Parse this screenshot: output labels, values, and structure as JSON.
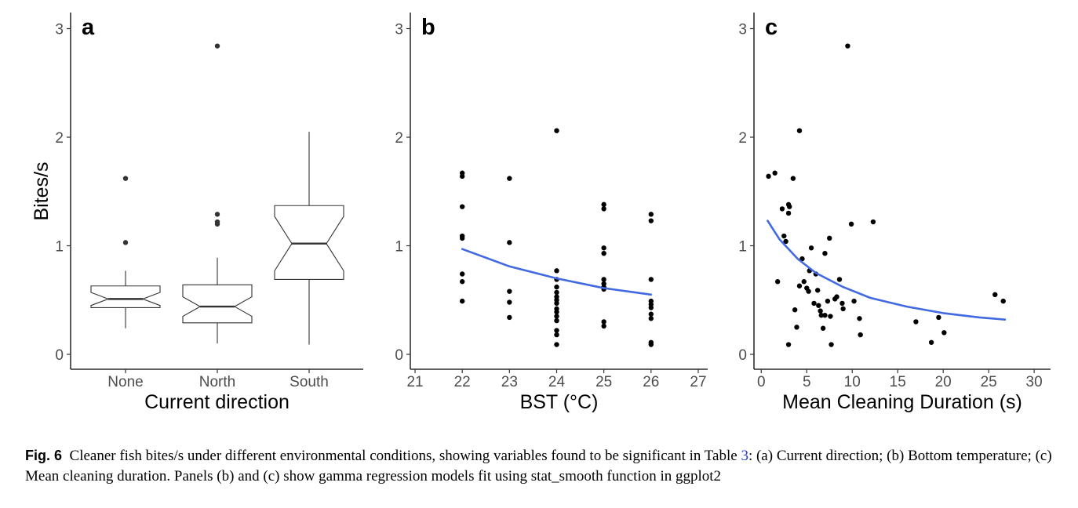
{
  "chart_data": [
    {
      "type": "box",
      "panel_label": "a",
      "xlabel": "Current direction",
      "ylabel": "Bites/s",
      "ylim": [
        0,
        3
      ],
      "yticks": [
        0,
        1,
        2,
        3
      ],
      "notched": true,
      "categories": [
        "None",
        "North",
        "South"
      ],
      "boxes": [
        {
          "category": "None",
          "whisker_low": 0.24,
          "q1": 0.43,
          "median": 0.51,
          "q3": 0.63,
          "whisker_high": 0.77,
          "notch_low": 0.45,
          "notch_high": 0.57,
          "outliers": [
            1.03,
            1.62
          ]
        },
        {
          "category": "North",
          "whisker_low": 0.1,
          "q1": 0.29,
          "median": 0.44,
          "q3": 0.64,
          "whisker_high": 0.89,
          "notch_low": 0.35,
          "notch_high": 0.53,
          "outliers": [
            1.2,
            1.22,
            1.29,
            2.84
          ]
        },
        {
          "category": "South",
          "whisker_low": 0.09,
          "q1": 0.69,
          "median": 1.02,
          "q3": 1.37,
          "whisker_high": 2.05,
          "notch_low": 0.77,
          "notch_high": 1.27,
          "outliers": []
        }
      ]
    },
    {
      "type": "scatter",
      "panel_label": "b",
      "xlabel": "BST (°C)",
      "ylabel": "",
      "xlim": [
        20.9,
        27.2
      ],
      "ylim": [
        0,
        3
      ],
      "xticks": [
        21,
        22,
        23,
        24,
        25,
        26,
        27
      ],
      "yticks": [
        0,
        1,
        2,
        3
      ],
      "points": [
        [
          22,
          1.67
        ],
        [
          22,
          1.64
        ],
        [
          22,
          1.36
        ],
        [
          22,
          1.09
        ],
        [
          22,
          1.07
        ],
        [
          22,
          0.74
        ],
        [
          22,
          0.67
        ],
        [
          22,
          0.49
        ],
        [
          23,
          1.62
        ],
        [
          23,
          1.03
        ],
        [
          23,
          0.58
        ],
        [
          23,
          0.48
        ],
        [
          23,
          0.34
        ],
        [
          24,
          2.06
        ],
        [
          24,
          0.77
        ],
        [
          24,
          0.69
        ],
        [
          24,
          0.62
        ],
        [
          24,
          0.57
        ],
        [
          24,
          0.53
        ],
        [
          24,
          0.5
        ],
        [
          24,
          0.47
        ],
        [
          24,
          0.42
        ],
        [
          24,
          0.39
        ],
        [
          24,
          0.35
        ],
        [
          24,
          0.31
        ],
        [
          24,
          0.22
        ],
        [
          24,
          0.18
        ],
        [
          24,
          0.09
        ],
        [
          25,
          1.38
        ],
        [
          25,
          1.34
        ],
        [
          25,
          0.98
        ],
        [
          25,
          0.93
        ],
        [
          25,
          0.69
        ],
        [
          25,
          0.65
        ],
        [
          25,
          0.62
        ],
        [
          25,
          0.6
        ],
        [
          25,
          0.3
        ],
        [
          25,
          0.26
        ],
        [
          26,
          1.29
        ],
        [
          26,
          1.23
        ],
        [
          26,
          0.69
        ],
        [
          26,
          0.49
        ],
        [
          26,
          0.46
        ],
        [
          26,
          0.43
        ],
        [
          26,
          0.37
        ],
        [
          26,
          0.33
        ],
        [
          26,
          0.11
        ],
        [
          26,
          0.09
        ]
      ],
      "fit": {
        "name": "gamma regression",
        "color": "#4169e1",
        "x": [
          22,
          23,
          24,
          25,
          26
        ],
        "y": [
          0.97,
          0.81,
          0.7,
          0.61,
          0.55
        ]
      }
    },
    {
      "type": "scatter",
      "panel_label": "c",
      "xlabel": "Mean Cleaning Duration (s)",
      "ylabel": "",
      "xlim": [
        -0.8,
        31.8
      ],
      "ylim": [
        0,
        3
      ],
      "xticks": [
        0,
        5,
        10,
        15,
        20,
        25,
        30
      ],
      "yticks": [
        0,
        1,
        2,
        3
      ],
      "points": [
        [
          0.8,
          1.64
        ],
        [
          1.5,
          1.67
        ],
        [
          1.8,
          0.67
        ],
        [
          2.3,
          1.34
        ],
        [
          2.5,
          1.09
        ],
        [
          2.7,
          1.04
        ],
        [
          3.0,
          1.38
        ],
        [
          3.0,
          1.3
        ],
        [
          3.1,
          1.36
        ],
        [
          3.0,
          0.09
        ],
        [
          3.5,
          1.62
        ],
        [
          3.7,
          0.41
        ],
        [
          3.9,
          0.25
        ],
        [
          4.2,
          0.63
        ],
        [
          4.2,
          2.06
        ],
        [
          4.5,
          0.88
        ],
        [
          4.7,
          0.67
        ],
        [
          5.0,
          0.61
        ],
        [
          5.2,
          0.58
        ],
        [
          5.3,
          0.77
        ],
        [
          5.5,
          0.98
        ],
        [
          5.8,
          0.47
        ],
        [
          6.0,
          0.74
        ],
        [
          6.2,
          0.59
        ],
        [
          6.3,
          0.45
        ],
        [
          6.5,
          0.4
        ],
        [
          6.6,
          0.36
        ],
        [
          6.8,
          0.24
        ],
        [
          7.0,
          0.93
        ],
        [
          7.0,
          0.36
        ],
        [
          7.3,
          0.49
        ],
        [
          7.5,
          1.07
        ],
        [
          7.6,
          0.35
        ],
        [
          7.7,
          0.09
        ],
        [
          8.1,
          0.51
        ],
        [
          8.3,
          0.53
        ],
        [
          8.6,
          0.69
        ],
        [
          8.9,
          0.47
        ],
        [
          9.0,
          0.42
        ],
        [
          9.5,
          2.84
        ],
        [
          9.9,
          1.2
        ],
        [
          10.2,
          0.49
        ],
        [
          10.8,
          0.33
        ],
        [
          10.9,
          0.18
        ],
        [
          12.3,
          1.22
        ],
        [
          17.0,
          0.3
        ],
        [
          18.7,
          0.11
        ],
        [
          19.5,
          0.34
        ],
        [
          20.1,
          0.2
        ],
        [
          25.7,
          0.55
        ],
        [
          26.6,
          0.49
        ]
      ],
      "fit": {
        "name": "gamma regression",
        "color": "#4169e1",
        "x": [
          0.7,
          2,
          4,
          6,
          9,
          12,
          16,
          20,
          24,
          26.8
        ],
        "y": [
          1.23,
          1.06,
          0.88,
          0.75,
          0.62,
          0.52,
          0.44,
          0.38,
          0.34,
          0.32
        ]
      }
    }
  ],
  "caption": {
    "label": "Fig. 6",
    "text_before": "Cleaner fish bites/s under different environmental conditions, showing variables found to be significant in Table ",
    "table_ref": "3",
    "text_after": ": (a) Current direction; (b) Bottom temperature; (c) Mean cleaning duration. Panels (b) and (c) show gamma regression models fit using stat_smooth function in ggplot2"
  }
}
